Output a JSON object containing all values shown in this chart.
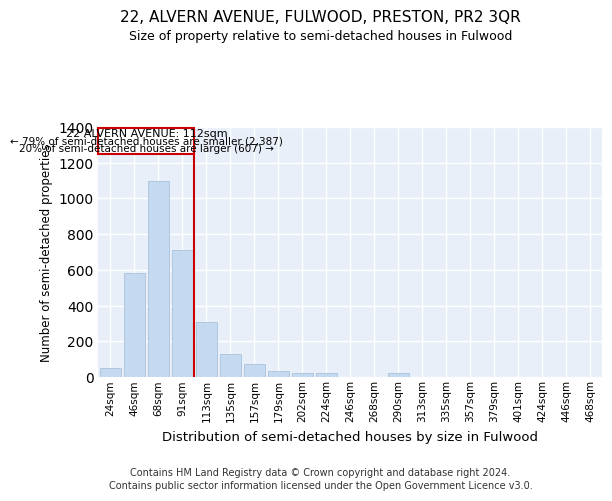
{
  "title": "22, ALVERN AVENUE, FULWOOD, PRESTON, PR2 3QR",
  "subtitle": "Size of property relative to semi-detached houses in Fulwood",
  "xlabel": "Distribution of semi-detached houses by size in Fulwood",
  "ylabel": "Number of semi-detached properties",
  "footer_line1": "Contains HM Land Registry data © Crown copyright and database right 2024.",
  "footer_line2": "Contains public sector information licensed under the Open Government Licence v3.0.",
  "bar_color": "#c5d9f0",
  "bar_edge_color": "#a0bcd8",
  "background_color": "#e8eff9",
  "grid_color": "#ffffff",
  "annotation_text_line1": "22 ALVERN AVENUE: 112sqm",
  "annotation_text_line2": "← 79% of semi-detached houses are smaller (2,387)",
  "annotation_text_line3": "20% of semi-detached houses are larger (607) →",
  "vline_color": "#cc0000",
  "annotation_box_color": "#cc0000",
  "categories": [
    "24sqm",
    "46sqm",
    "68sqm",
    "91sqm",
    "113sqm",
    "135sqm",
    "157sqm",
    "179sqm",
    "202sqm",
    "224sqm",
    "246sqm",
    "268sqm",
    "290sqm",
    "313sqm",
    "335sqm",
    "357sqm",
    "379sqm",
    "401sqm",
    "424sqm",
    "446sqm",
    "468sqm"
  ],
  "values": [
    50,
    580,
    1100,
    710,
    310,
    130,
    75,
    35,
    25,
    20,
    0,
    0,
    20,
    0,
    0,
    0,
    0,
    0,
    0,
    0,
    0
  ],
  "ylim": [
    0,
    1400
  ],
  "yticks": [
    0,
    200,
    400,
    600,
    800,
    1000,
    1200,
    1400
  ],
  "vline_x_index": 4,
  "figsize": [
    6.0,
    5.0
  ],
  "dpi": 100
}
